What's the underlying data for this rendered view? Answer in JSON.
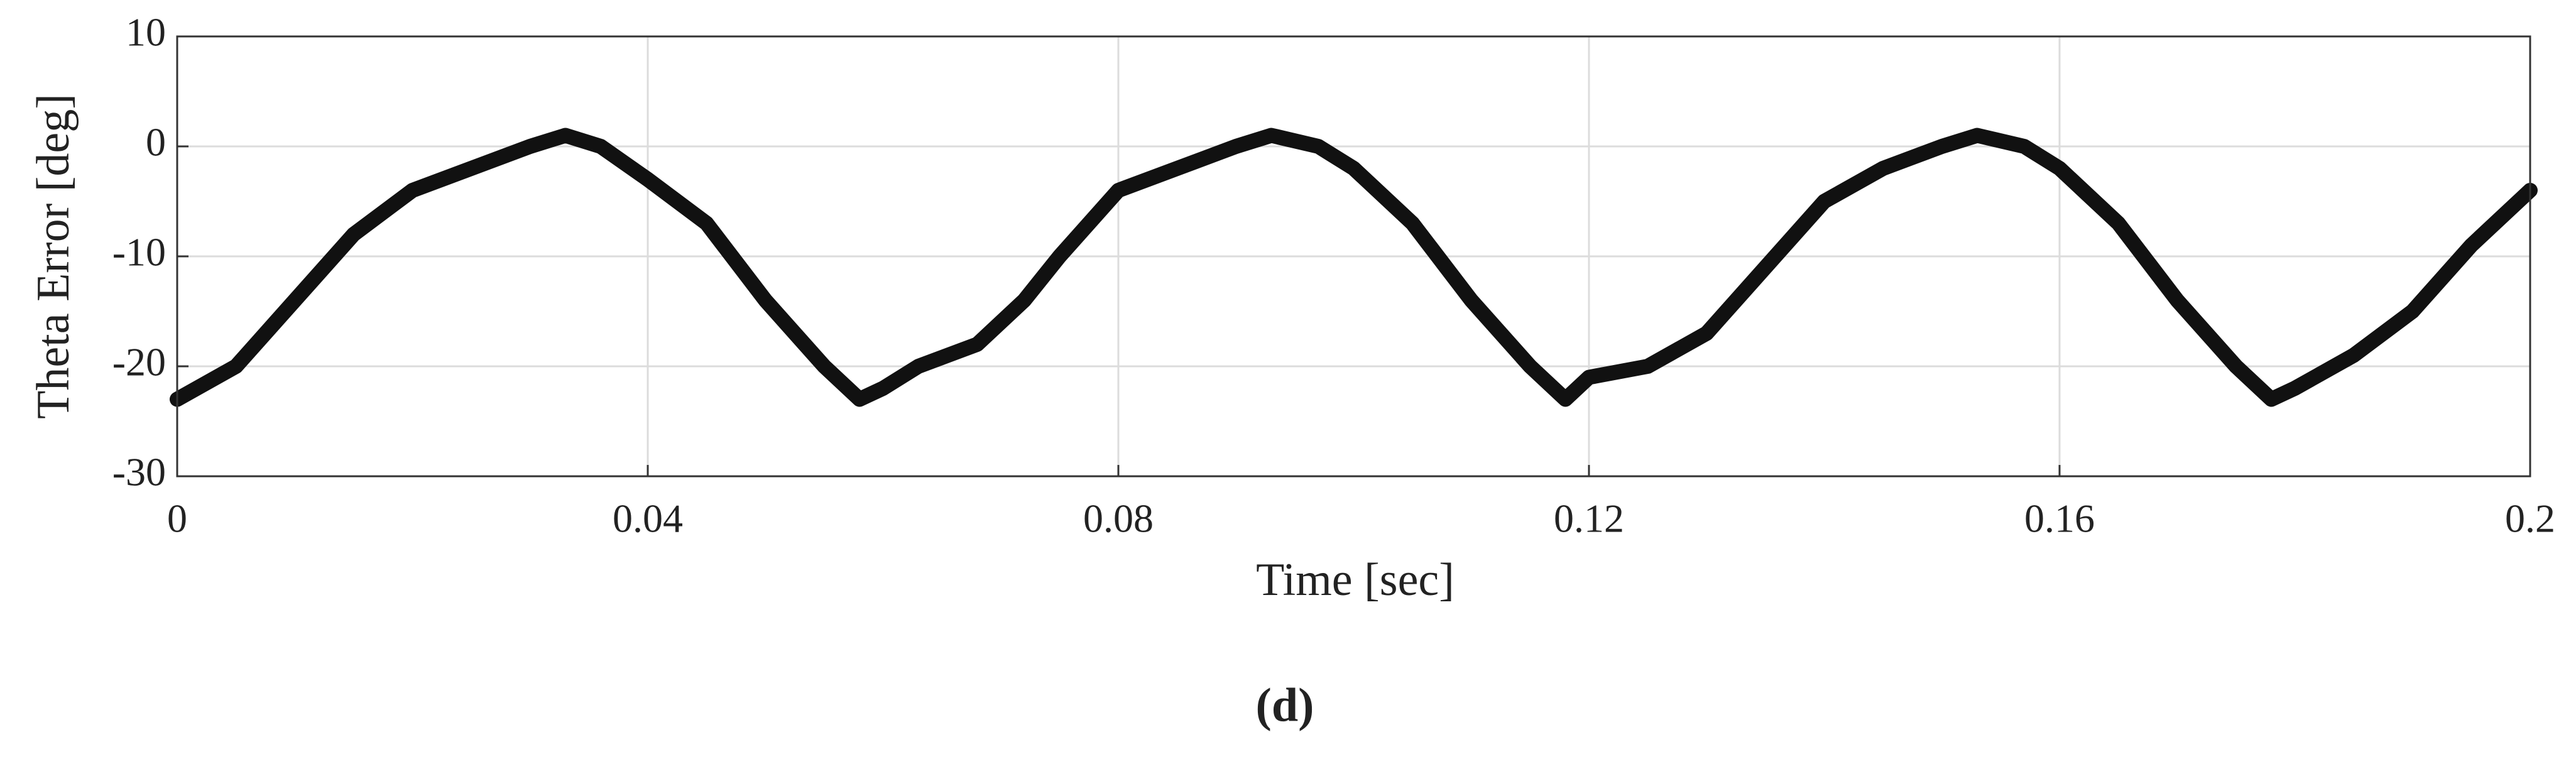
{
  "chart_data": {
    "type": "line",
    "xlabel": "Time [sec]",
    "ylabel": "Theta Error [deg]",
    "caption": "(d)",
    "x": [
      0,
      0.005,
      0.01,
      0.015,
      0.02,
      0.025,
      0.03,
      0.033,
      0.036,
      0.04,
      0.045,
      0.05,
      0.055,
      0.058,
      0.06,
      0.063,
      0.068,
      0.072,
      0.075,
      0.08,
      0.085,
      0.09,
      0.093,
      0.097,
      0.1,
      0.105,
      0.11,
      0.115,
      0.118,
      0.12,
      0.125,
      0.13,
      0.135,
      0.14,
      0.145,
      0.15,
      0.153,
      0.157,
      0.16,
      0.165,
      0.17,
      0.175,
      0.178,
      0.18,
      0.185,
      0.19,
      0.195,
      0.2
    ],
    "series": [
      {
        "color": "#111111",
        "values": [
          -23,
          -20,
          -14,
          -8,
          -4,
          -2,
          0,
          1,
          0,
          -3,
          -7,
          -14,
          -20,
          -23,
          -22,
          -20,
          -18,
          -14,
          -10,
          -4,
          -2,
          0,
          1,
          0,
          -2,
          -7,
          -14,
          -20,
          -23,
          -21,
          -20,
          -17,
          -11,
          -5,
          -2,
          0,
          1,
          0,
          -2,
          -7,
          -14,
          -20,
          -23,
          -22,
          -19,
          -15,
          -9,
          -4
        ]
      }
    ],
    "xlim": [
      0,
      0.2
    ],
    "xticks": [
      0,
      0.04,
      0.08,
      0.12,
      0.16,
      0.2
    ],
    "ylim": [
      -30,
      10
    ],
    "yticks": [
      -30,
      -20,
      -10,
      0,
      10
    ],
    "grid": true
  }
}
